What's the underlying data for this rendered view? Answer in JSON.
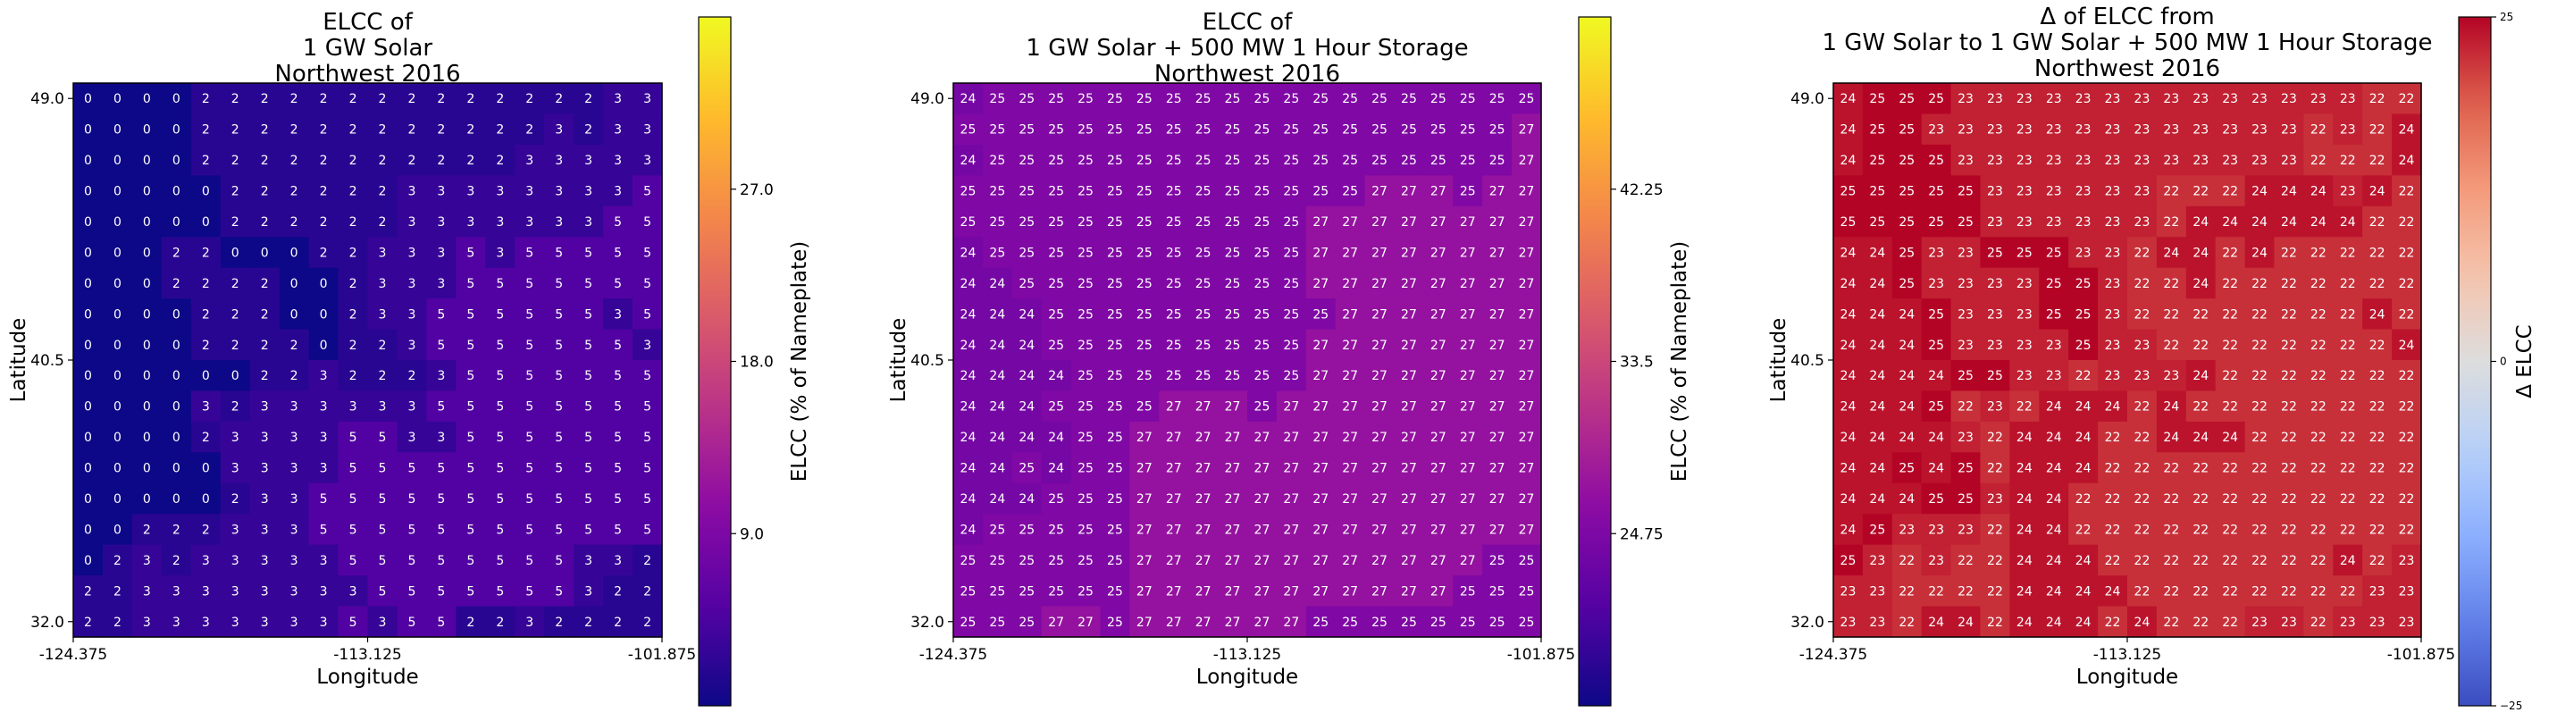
{
  "chart_data": [
    {
      "type": "heatmap",
      "title": [
        "ELCC of",
        "1 GW Solar",
        "Northwest 2016"
      ],
      "xlabel": "Longitude",
      "ylabel": "Latitude",
      "x_ticks": [
        "-124.375",
        "-113.125",
        "-101.875"
      ],
      "y_ticks": [
        "49.0",
        "40.5",
        "32.0"
      ],
      "colorbar_label": "ELCC (% of Nameplate)",
      "colorbar_ticks": [
        "9.0",
        "18.0",
        "27.0"
      ],
      "colorbar_tick_values": [
        9,
        18,
        27
      ],
      "vmin": 0,
      "vmax": 36,
      "colormap": "plasma",
      "values": [
        [
          0,
          0,
          0,
          0,
          2,
          2,
          2,
          2,
          2,
          2,
          2,
          2,
          2,
          2,
          2,
          2,
          2,
          2,
          3,
          3
        ],
        [
          0,
          0,
          0,
          0,
          2,
          2,
          2,
          2,
          2,
          2,
          2,
          2,
          2,
          2,
          2,
          2,
          3,
          2,
          3,
          3
        ],
        [
          0,
          0,
          0,
          0,
          2,
          2,
          2,
          2,
          2,
          2,
          2,
          2,
          2,
          2,
          2,
          3,
          3,
          3,
          3,
          3
        ],
        [
          0,
          0,
          0,
          0,
          0,
          2,
          2,
          2,
          2,
          2,
          2,
          3,
          3,
          3,
          3,
          3,
          3,
          3,
          3,
          5
        ],
        [
          0,
          0,
          0,
          0,
          0,
          2,
          2,
          2,
          2,
          2,
          2,
          3,
          3,
          3,
          3,
          3,
          3,
          3,
          5,
          5
        ],
        [
          0,
          0,
          0,
          2,
          2,
          0,
          0,
          0,
          2,
          2,
          3,
          3,
          3,
          5,
          3,
          5,
          5,
          5,
          5,
          5
        ],
        [
          0,
          0,
          0,
          2,
          2,
          2,
          2,
          0,
          0,
          2,
          3,
          3,
          3,
          5,
          5,
          5,
          5,
          5,
          5,
          5
        ],
        [
          0,
          0,
          0,
          0,
          2,
          2,
          2,
          0,
          0,
          2,
          3,
          3,
          5,
          5,
          5,
          5,
          5,
          5,
          3,
          5
        ],
        [
          0,
          0,
          0,
          0,
          2,
          2,
          2,
          2,
          0,
          2,
          2,
          3,
          5,
          5,
          5,
          5,
          5,
          5,
          5,
          3
        ],
        [
          0,
          0,
          0,
          0,
          0,
          0,
          2,
          2,
          3,
          2,
          2,
          2,
          3,
          5,
          5,
          5,
          5,
          5,
          5,
          5
        ],
        [
          0,
          0,
          0,
          0,
          3,
          2,
          3,
          3,
          3,
          3,
          3,
          3,
          5,
          5,
          5,
          5,
          5,
          5,
          5,
          5
        ],
        [
          0,
          0,
          0,
          0,
          2,
          3,
          3,
          3,
          3,
          5,
          5,
          3,
          3,
          5,
          5,
          5,
          5,
          5,
          5,
          5
        ],
        [
          0,
          0,
          0,
          0,
          0,
          3,
          3,
          3,
          3,
          5,
          5,
          5,
          5,
          5,
          5,
          5,
          5,
          5,
          5,
          5
        ],
        [
          0,
          0,
          0,
          0,
          0,
          2,
          3,
          3,
          5,
          5,
          5,
          5,
          5,
          5,
          5,
          5,
          5,
          5,
          5,
          5
        ],
        [
          0,
          0,
          2,
          2,
          2,
          3,
          3,
          3,
          5,
          5,
          5,
          5,
          5,
          5,
          5,
          5,
          5,
          5,
          5,
          5
        ],
        [
          0,
          2,
          3,
          2,
          3,
          3,
          3,
          3,
          3,
          5,
          5,
          5,
          5,
          5,
          5,
          5,
          5,
          3,
          3,
          2
        ],
        [
          2,
          2,
          3,
          3,
          3,
          3,
          3,
          3,
          3,
          3,
          5,
          5,
          5,
          5,
          5,
          5,
          5,
          3,
          2,
          2
        ],
        [
          2,
          2,
          3,
          3,
          3,
          3,
          3,
          3,
          3,
          5,
          3,
          5,
          5,
          2,
          2,
          3,
          2,
          2,
          2,
          2
        ]
      ]
    },
    {
      "type": "heatmap",
      "title": [
        "ELCC of",
        "1 GW Solar + 500 MW 1 Hour Storage",
        "Northwest 2016"
      ],
      "xlabel": "Longitude",
      "ylabel": "Latitude",
      "x_ticks": [
        "-124.375",
        "-113.125",
        "-101.875"
      ],
      "y_ticks": [
        "49.0",
        "40.5",
        "32.0"
      ],
      "colorbar_label": "ELCC (% of Nameplate)",
      "colorbar_ticks": [
        "24.75",
        "33.5",
        "42.25"
      ],
      "colorbar_tick_values": [
        24.75,
        33.5,
        42.25
      ],
      "vmin": 16,
      "vmax": 51,
      "colormap": "plasma",
      "values": [
        [
          24,
          25,
          25,
          25,
          25,
          25,
          25,
          25,
          25,
          25,
          25,
          25,
          25,
          25,
          25,
          25,
          25,
          25,
          25,
          25
        ],
        [
          25,
          25,
          25,
          25,
          25,
          25,
          25,
          25,
          25,
          25,
          25,
          25,
          25,
          25,
          25,
          25,
          25,
          25,
          25,
          27
        ],
        [
          24,
          25,
          25,
          25,
          25,
          25,
          25,
          25,
          25,
          25,
          25,
          25,
          25,
          25,
          25,
          25,
          25,
          25,
          25,
          27
        ],
        [
          25,
          25,
          25,
          25,
          25,
          25,
          25,
          25,
          25,
          25,
          25,
          25,
          25,
          25,
          27,
          27,
          27,
          25,
          27,
          27
        ],
        [
          25,
          25,
          25,
          25,
          25,
          25,
          25,
          25,
          25,
          25,
          25,
          25,
          27,
          27,
          27,
          27,
          27,
          27,
          27,
          27
        ],
        [
          24,
          25,
          25,
          25,
          25,
          25,
          25,
          25,
          25,
          25,
          25,
          25,
          27,
          27,
          27,
          27,
          27,
          27,
          27,
          27
        ],
        [
          24,
          24,
          25,
          25,
          25,
          25,
          25,
          25,
          25,
          25,
          25,
          25,
          27,
          27,
          27,
          27,
          27,
          27,
          27,
          27
        ],
        [
          24,
          24,
          24,
          25,
          25,
          25,
          25,
          25,
          25,
          25,
          25,
          25,
          25,
          27,
          27,
          27,
          27,
          27,
          27,
          27
        ],
        [
          24,
          24,
          24,
          25,
          25,
          25,
          25,
          25,
          25,
          25,
          25,
          25,
          27,
          27,
          27,
          27,
          27,
          27,
          27,
          27
        ],
        [
          24,
          24,
          24,
          24,
          25,
          25,
          25,
          25,
          25,
          25,
          25,
          25,
          27,
          27,
          27,
          27,
          27,
          27,
          27,
          27
        ],
        [
          24,
          24,
          24,
          25,
          25,
          25,
          25,
          27,
          27,
          27,
          25,
          27,
          27,
          27,
          27,
          27,
          27,
          27,
          27,
          27
        ],
        [
          24,
          24,
          24,
          24,
          25,
          25,
          27,
          27,
          27,
          27,
          27,
          27,
          27,
          27,
          27,
          27,
          27,
          27,
          27,
          27
        ],
        [
          24,
          24,
          25,
          24,
          25,
          25,
          27,
          27,
          27,
          27,
          27,
          27,
          27,
          27,
          27,
          27,
          27,
          27,
          27,
          27
        ],
        [
          24,
          24,
          24,
          25,
          25,
          25,
          27,
          27,
          27,
          27,
          27,
          27,
          27,
          27,
          27,
          27,
          27,
          27,
          27,
          27
        ],
        [
          24,
          25,
          25,
          25,
          25,
          25,
          27,
          27,
          27,
          27,
          27,
          27,
          27,
          27,
          27,
          27,
          27,
          27,
          27,
          27
        ],
        [
          25,
          25,
          25,
          25,
          25,
          25,
          27,
          27,
          27,
          27,
          27,
          27,
          27,
          27,
          27,
          27,
          27,
          27,
          25,
          25
        ],
        [
          25,
          25,
          25,
          25,
          25,
          25,
          27,
          27,
          27,
          27,
          27,
          27,
          27,
          27,
          27,
          27,
          27,
          25,
          25,
          25
        ],
        [
          25,
          25,
          25,
          27,
          27,
          25,
          27,
          27,
          27,
          27,
          27,
          27,
          25,
          25,
          25,
          25,
          25,
          25,
          25,
          25
        ]
      ]
    },
    {
      "type": "heatmap",
      "title": [
        "Δ of ELCC from",
        "1 GW Solar to 1 GW Solar + 500 MW 1 Hour Storage",
        "Northwest 2016"
      ],
      "xlabel": "Longitude",
      "ylabel": "Latitude",
      "x_ticks": [
        "-124.375",
        "-113.125",
        "-101.875"
      ],
      "y_ticks": [
        "49.0",
        "40.5",
        "32.0"
      ],
      "colorbar_label": "Δ ELCC",
      "colorbar_ticks": [
        "−25",
        "0",
        "25"
      ],
      "colorbar_tick_values": [
        -25,
        0,
        25
      ],
      "vmin": -25,
      "vmax": 25,
      "colormap": "coolwarm",
      "values": [
        [
          24,
          25,
          25,
          25,
          23,
          23,
          23,
          23,
          23,
          23,
          23,
          23,
          23,
          23,
          23,
          23,
          23,
          23,
          22,
          22
        ],
        [
          24,
          25,
          25,
          23,
          23,
          23,
          23,
          23,
          23,
          23,
          23,
          23,
          23,
          23,
          23,
          23,
          22,
          23,
          22,
          24
        ],
        [
          24,
          25,
          25,
          25,
          23,
          23,
          23,
          23,
          23,
          23,
          23,
          23,
          23,
          23,
          23,
          23,
          22,
          22,
          22,
          24
        ],
        [
          25,
          25,
          25,
          25,
          25,
          23,
          23,
          23,
          23,
          23,
          23,
          22,
          22,
          22,
          24,
          24,
          24,
          23,
          24,
          22
        ],
        [
          25,
          25,
          25,
          25,
          25,
          23,
          23,
          23,
          23,
          23,
          23,
          22,
          24,
          24,
          24,
          24,
          24,
          24,
          22,
          22
        ],
        [
          24,
          24,
          25,
          23,
          23,
          25,
          25,
          25,
          23,
          23,
          22,
          24,
          24,
          22,
          24,
          22,
          22,
          22,
          22,
          22
        ],
        [
          24,
          24,
          25,
          23,
          23,
          23,
          23,
          25,
          25,
          23,
          22,
          22,
          24,
          22,
          22,
          22,
          22,
          22,
          22,
          22
        ],
        [
          24,
          24,
          24,
          25,
          23,
          23,
          23,
          25,
          25,
          23,
          22,
          22,
          22,
          22,
          22,
          22,
          22,
          22,
          24,
          22
        ],
        [
          24,
          24,
          24,
          25,
          23,
          23,
          23,
          23,
          25,
          23,
          23,
          22,
          22,
          22,
          22,
          22,
          22,
          22,
          22,
          24
        ],
        [
          24,
          24,
          24,
          24,
          25,
          25,
          23,
          23,
          22,
          23,
          23,
          23,
          24,
          22,
          22,
          22,
          22,
          22,
          22,
          22
        ],
        [
          24,
          24,
          24,
          25,
          22,
          23,
          22,
          24,
          24,
          24,
          22,
          24,
          22,
          22,
          22,
          22,
          22,
          22,
          22,
          22
        ],
        [
          24,
          24,
          24,
          24,
          23,
          22,
          24,
          24,
          24,
          22,
          22,
          24,
          24,
          24,
          22,
          22,
          22,
          22,
          22,
          22
        ],
        [
          24,
          24,
          25,
          24,
          25,
          22,
          24,
          24,
          24,
          22,
          22,
          22,
          22,
          22,
          22,
          22,
          22,
          22,
          22,
          22
        ],
        [
          24,
          24,
          24,
          25,
          25,
          23,
          24,
          24,
          22,
          22,
          22,
          22,
          22,
          22,
          22,
          22,
          22,
          22,
          22,
          22
        ],
        [
          24,
          25,
          23,
          23,
          23,
          22,
          24,
          24,
          22,
          22,
          22,
          22,
          22,
          22,
          22,
          22,
          22,
          22,
          22,
          22
        ],
        [
          25,
          23,
          22,
          23,
          22,
          22,
          24,
          24,
          24,
          22,
          22,
          22,
          22,
          22,
          22,
          22,
          22,
          24,
          22,
          23
        ],
        [
          23,
          23,
          22,
          22,
          22,
          22,
          24,
          24,
          24,
          24,
          22,
          22,
          22,
          22,
          22,
          22,
          22,
          22,
          23,
          23
        ],
        [
          23,
          23,
          22,
          24,
          24,
          22,
          24,
          24,
          24,
          22,
          24,
          22,
          22,
          22,
          23,
          23,
          22,
          23,
          23,
          23
        ]
      ]
    }
  ]
}
